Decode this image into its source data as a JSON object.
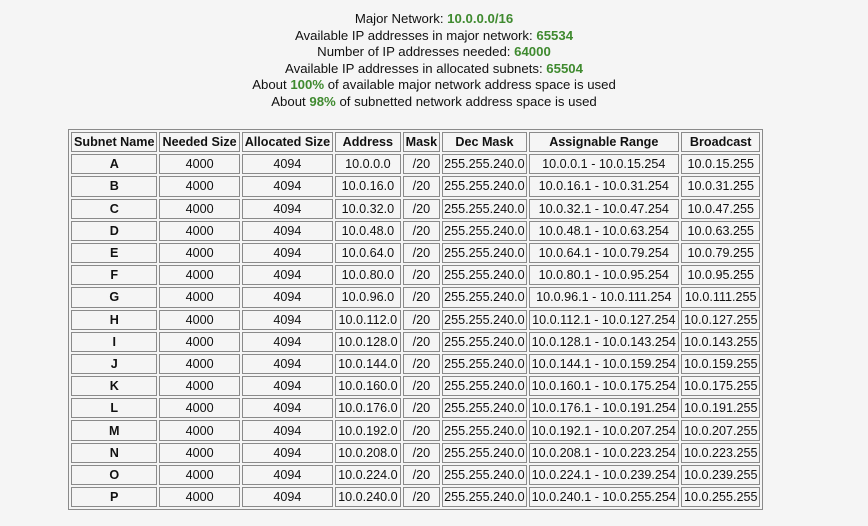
{
  "summary": {
    "major_network_label": "Major Network: ",
    "major_network_value": "10.0.0.0/16",
    "available_major_label": "Available IP addresses in major network: ",
    "available_major_value": "65534",
    "needed_label": "Number of IP addresses needed: ",
    "needed_value": "64000",
    "allocated_label": "Available IP addresses in allocated subnets: ",
    "allocated_value": "65504",
    "major_used_prefix": "About ",
    "major_used_value": "100%",
    "major_used_suffix": " of available major network address space is used",
    "subnetted_used_prefix": "About ",
    "subnetted_used_value": "98%",
    "subnetted_used_suffix": " of subnetted network address space is used",
    "highlight_color": "#3f8a2f"
  },
  "table": {
    "headers": [
      "Subnet Name",
      "Needed Size",
      "Allocated Size",
      "Address",
      "Mask",
      "Dec Mask",
      "Assignable Range",
      "Broadcast"
    ],
    "rows": [
      [
        "A",
        "4000",
        "4094",
        "10.0.0.0",
        "/20",
        "255.255.240.0",
        "10.0.0.1 - 10.0.15.254",
        "10.0.15.255"
      ],
      [
        "B",
        "4000",
        "4094",
        "10.0.16.0",
        "/20",
        "255.255.240.0",
        "10.0.16.1 - 10.0.31.254",
        "10.0.31.255"
      ],
      [
        "C",
        "4000",
        "4094",
        "10.0.32.0",
        "/20",
        "255.255.240.0",
        "10.0.32.1 - 10.0.47.254",
        "10.0.47.255"
      ],
      [
        "D",
        "4000",
        "4094",
        "10.0.48.0",
        "/20",
        "255.255.240.0",
        "10.0.48.1 - 10.0.63.254",
        "10.0.63.255"
      ],
      [
        "E",
        "4000",
        "4094",
        "10.0.64.0",
        "/20",
        "255.255.240.0",
        "10.0.64.1 - 10.0.79.254",
        "10.0.79.255"
      ],
      [
        "F",
        "4000",
        "4094",
        "10.0.80.0",
        "/20",
        "255.255.240.0",
        "10.0.80.1 - 10.0.95.254",
        "10.0.95.255"
      ],
      [
        "G",
        "4000",
        "4094",
        "10.0.96.0",
        "/20",
        "255.255.240.0",
        "10.0.96.1 - 10.0.111.254",
        "10.0.111.255"
      ],
      [
        "H",
        "4000",
        "4094",
        "10.0.112.0",
        "/20",
        "255.255.240.0",
        "10.0.112.1 - 10.0.127.254",
        "10.0.127.255"
      ],
      [
        "I",
        "4000",
        "4094",
        "10.0.128.0",
        "/20",
        "255.255.240.0",
        "10.0.128.1 - 10.0.143.254",
        "10.0.143.255"
      ],
      [
        "J",
        "4000",
        "4094",
        "10.0.144.0",
        "/20",
        "255.255.240.0",
        "10.0.144.1 - 10.0.159.254",
        "10.0.159.255"
      ],
      [
        "K",
        "4000",
        "4094",
        "10.0.160.0",
        "/20",
        "255.255.240.0",
        "10.0.160.1 - 10.0.175.254",
        "10.0.175.255"
      ],
      [
        "L",
        "4000",
        "4094",
        "10.0.176.0",
        "/20",
        "255.255.240.0",
        "10.0.176.1 - 10.0.191.254",
        "10.0.191.255"
      ],
      [
        "M",
        "4000",
        "4094",
        "10.0.192.0",
        "/20",
        "255.255.240.0",
        "10.0.192.1 - 10.0.207.254",
        "10.0.207.255"
      ],
      [
        "N",
        "4000",
        "4094",
        "10.0.208.0",
        "/20",
        "255.255.240.0",
        "10.0.208.1 - 10.0.223.254",
        "10.0.223.255"
      ],
      [
        "O",
        "4000",
        "4094",
        "10.0.224.0",
        "/20",
        "255.255.240.0",
        "10.0.224.1 - 10.0.239.254",
        "10.0.239.255"
      ],
      [
        "P",
        "4000",
        "4094",
        "10.0.240.0",
        "/20",
        "255.255.240.0",
        "10.0.240.1 - 10.0.255.254",
        "10.0.255.255"
      ]
    ]
  }
}
